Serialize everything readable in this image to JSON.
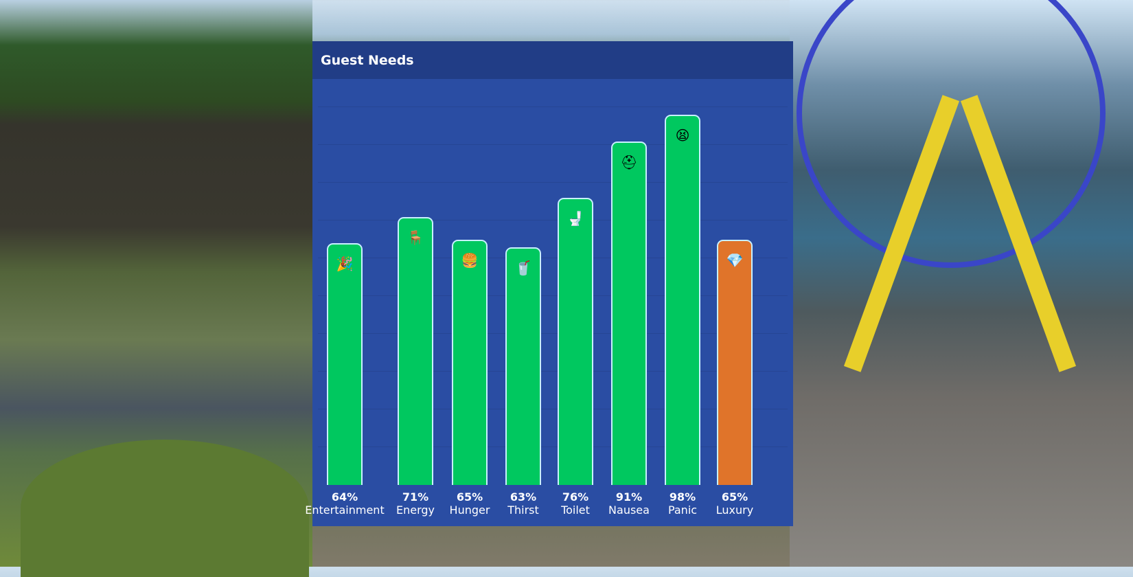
{
  "panel": {
    "title": "Guest Needs"
  },
  "chart_data": {
    "type": "bar",
    "title": "Guest Needs",
    "categories": [
      "Entertainment",
      "Energy",
      "Hunger",
      "Thirst",
      "Toilet",
      "Nausea",
      "Panic",
      "Luxury"
    ],
    "values": [
      64,
      71,
      65,
      63,
      76,
      91,
      98,
      65
    ],
    "value_labels": [
      "64%",
      "71%",
      "65%",
      "63%",
      "76%",
      "91%",
      "98%",
      "65%"
    ],
    "icons": [
      "party-popper-icon",
      "bench-icon",
      "burger-icon",
      "drink-cup-icon",
      "toilet-icon",
      "first-aid-kit-icon",
      "scared-face-icon",
      "diamond-icon"
    ],
    "bar_colors": [
      "#00c85f",
      "#00c85f",
      "#00c85f",
      "#00c85f",
      "#00c85f",
      "#00c85f",
      "#00c85f",
      "#e0742a"
    ],
    "ylim": [
      0,
      100
    ],
    "grid": true
  },
  "colors": {
    "good": "#00c85f",
    "warning": "#e0742a",
    "panel": "#2a4da3",
    "header": "#213d86"
  }
}
